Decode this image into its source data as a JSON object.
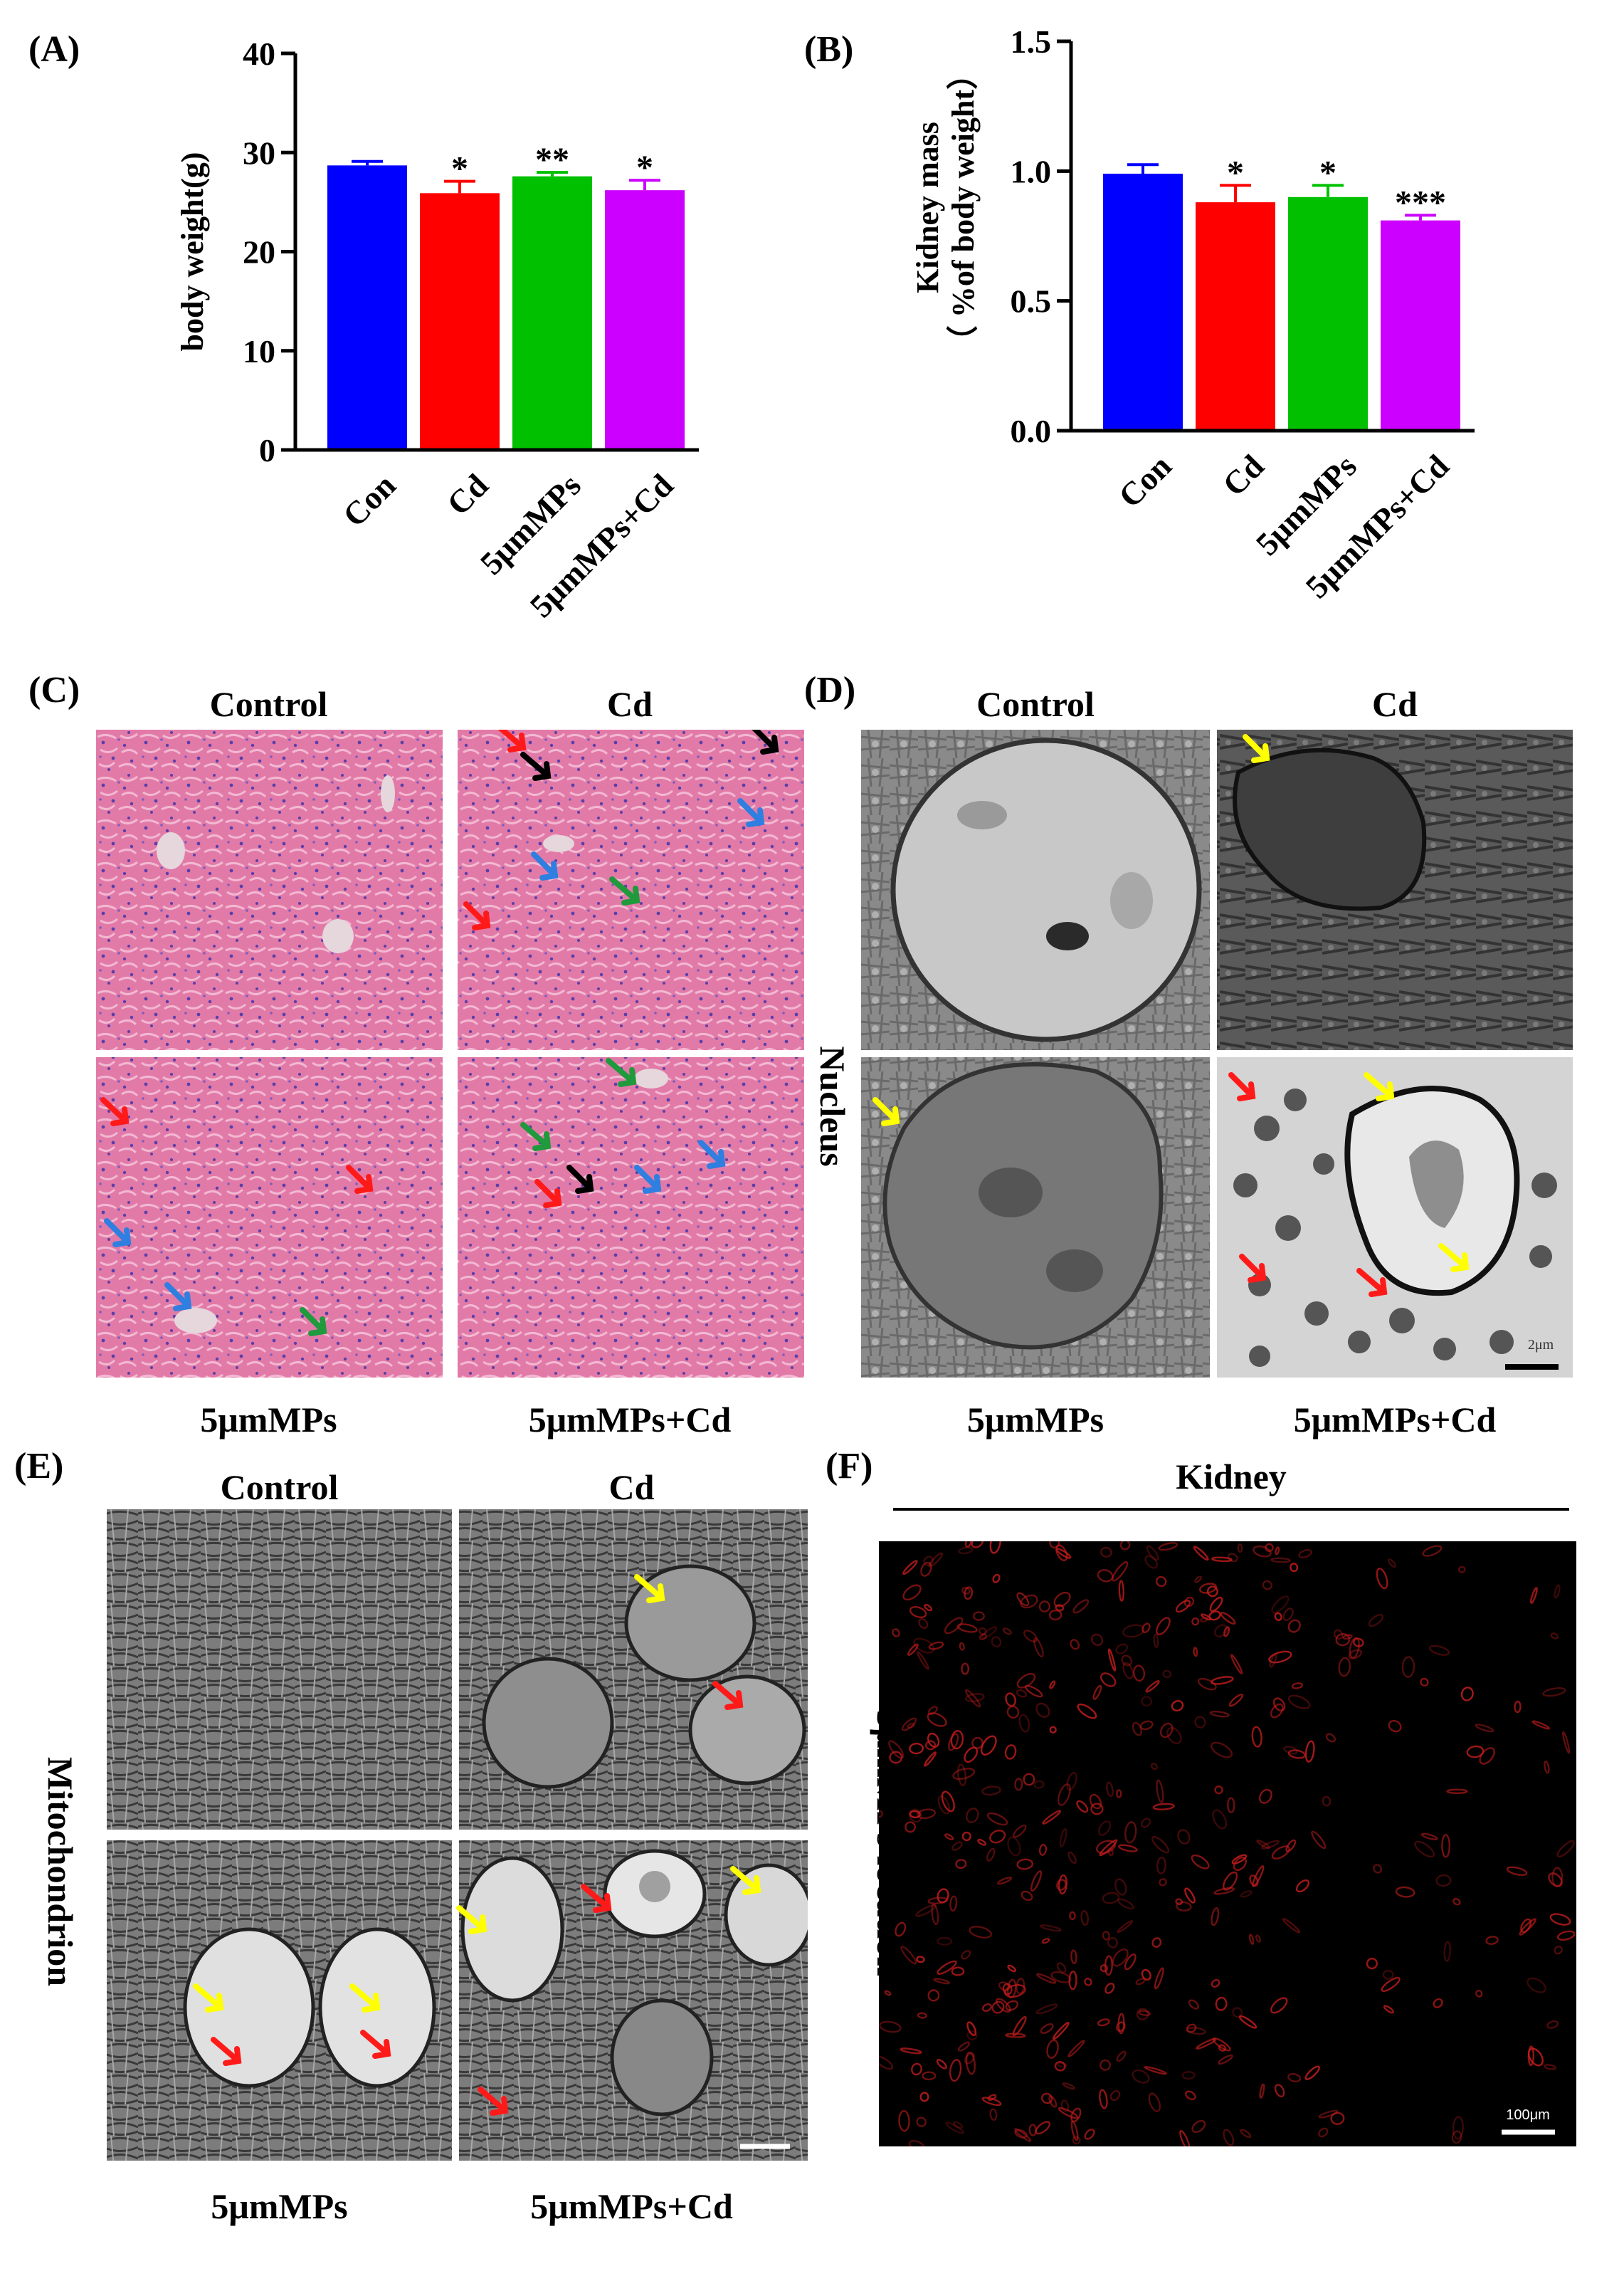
{
  "panels": {
    "A": {
      "label": "(A)"
    },
    "B": {
      "label": "(B)"
    },
    "C": {
      "label": "(C)",
      "col_titles": [
        "Control",
        "Cd"
      ],
      "bottom_titles": [
        "5μmMPs",
        "5μmMPs+Cd"
      ]
    },
    "D": {
      "label": "(D)",
      "col_titles": [
        "Control",
        "Cd"
      ],
      "bottom_titles": [
        "5μmMPs",
        "5μmMPs+Cd"
      ],
      "side_label": "Nucleus",
      "scale_text": "2μm"
    },
    "E": {
      "label": "(E)",
      "col_titles": [
        "Control",
        "Cd"
      ],
      "bottom_titles": [
        "5μmMPs",
        "5μmMPs+Cd"
      ],
      "side_label": "Mitochondrion"
    },
    "F": {
      "label": "(F)",
      "title": "Kidney",
      "side_label": "5μmMPs location",
      "scale_text": "100μm"
    }
  },
  "colors": {
    "con": "#0000ff",
    "cd": "#ff0000",
    "mps": "#00c000",
    "mpscd": "#cc00ff",
    "red_arrow": "#ff1a1a",
    "black_arrow": "#000000",
    "blue_arrow": "#2f7fe0",
    "green_arrow": "#1f9a3c",
    "yellow_arrow": "#ffff00"
  },
  "chart_data": [
    {
      "type": "bar",
      "categories": [
        "Con",
        "Cd",
        "5μmMPs",
        "5μmMPs+Cd"
      ],
      "values": [
        28.7,
        25.9,
        27.6,
        26.2
      ],
      "errors": [
        0.4,
        1.2,
        0.4,
        1.0
      ],
      "significance": [
        "",
        "*",
        "**",
        "*"
      ],
      "ylabel": "body weight(g)",
      "ylim": [
        0,
        40
      ],
      "yticks": [
        0,
        10,
        20,
        30,
        40
      ]
    },
    {
      "type": "bar",
      "categories": [
        "Con",
        "Cd",
        "5μmMPs",
        "5μmMPs+Cd"
      ],
      "values": [
        0.99,
        0.88,
        0.9,
        0.81
      ],
      "errors": [
        0.035,
        0.065,
        0.045,
        0.02
      ],
      "significance": [
        "",
        "*",
        "*",
        "***"
      ],
      "ylabel_lines": [
        "Kidney mass",
        "（ %of body weight）"
      ],
      "ylim": [
        0,
        1.5
      ],
      "yticks": [
        "0.0",
        "0.5",
        "1.0",
        "1.5"
      ]
    }
  ]
}
